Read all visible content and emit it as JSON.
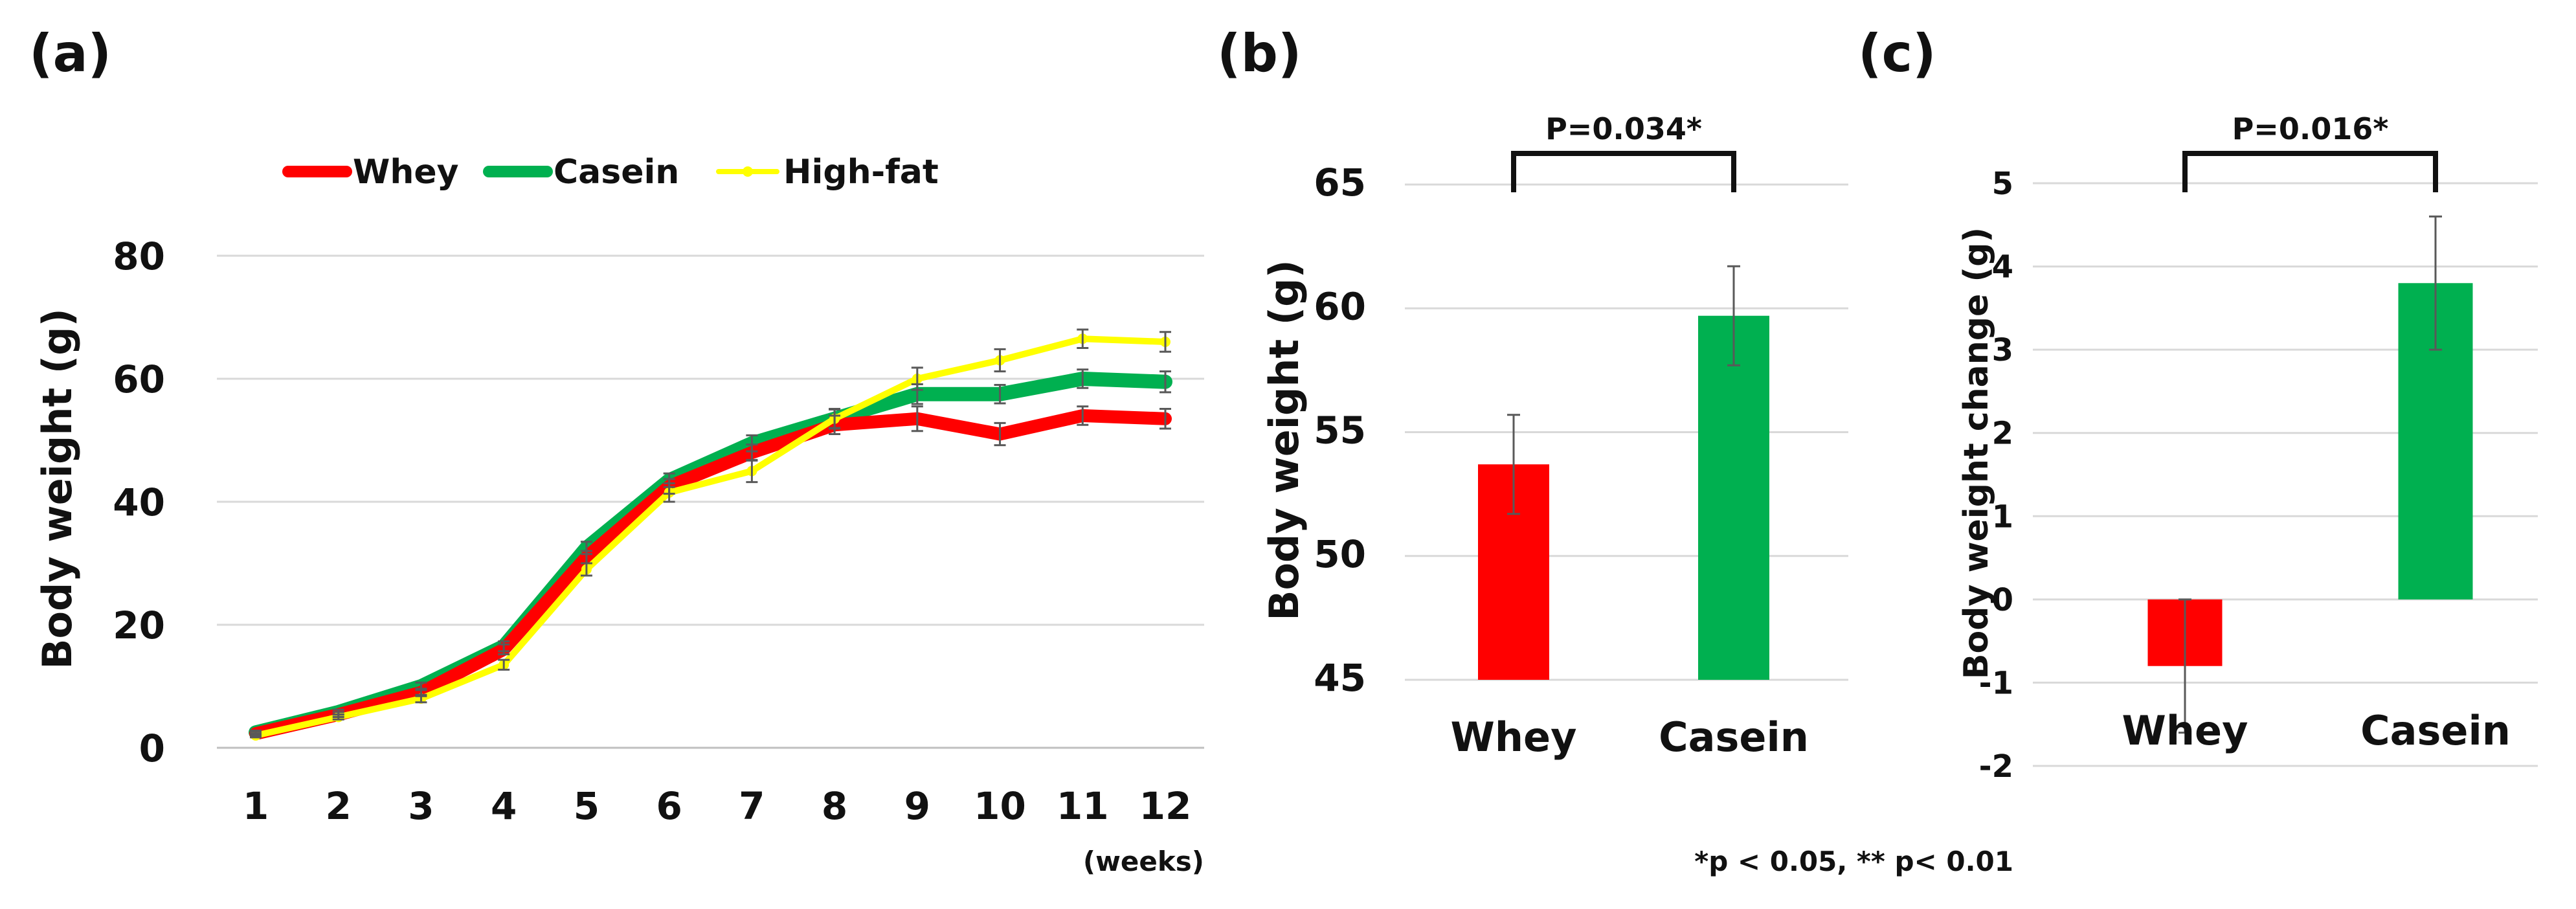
{
  "chart_data": [
    {
      "type": "line",
      "panel_label": "(a)",
      "ylabel": "Body weight (g)",
      "xlabel": "(weeks)",
      "x": [
        1,
        2,
        3,
        4,
        5,
        6,
        7,
        8,
        9,
        10,
        11,
        12
      ],
      "x_ticks": [
        "1",
        "2",
        "3",
        "4",
        "5",
        "6",
        "7",
        "8",
        "9",
        "10",
        "11",
        "12"
      ],
      "ylim": [
        0,
        80
      ],
      "y_ticks": [
        "0",
        "20",
        "40",
        "60",
        "80"
      ],
      "y_tick_values": [
        0,
        20,
        40,
        60,
        80
      ],
      "series": [
        {
          "name": "Whey",
          "color": "#ff0000",
          "values": [
            2.3,
            5.4,
            9.0,
            16.0,
            31.0,
            42.5,
            48.0,
            52.5,
            53.5,
            51.0,
            54.0,
            53.5
          ],
          "errors": [
            0.3,
            0.4,
            0.6,
            0.8,
            1.0,
            1.2,
            1.3,
            1.5,
            2.0,
            1.8,
            1.5,
            1.6
          ]
        },
        {
          "name": "Casein",
          "color": "#00b050",
          "values": [
            2.5,
            5.8,
            10.0,
            16.5,
            32.5,
            43.5,
            49.5,
            53.5,
            57.5,
            57.5,
            60.0,
            59.5
          ],
          "errors": [
            0.3,
            0.4,
            0.6,
            0.8,
            1.0,
            1.1,
            1.3,
            1.5,
            1.6,
            1.5,
            1.5,
            1.7
          ]
        },
        {
          "name": "High-fat",
          "color": "#ffff00",
          "values": [
            2.0,
            5.0,
            8.0,
            13.5,
            29.0,
            41.5,
            45.0,
            53.5,
            60.0,
            63.0,
            66.5,
            66.0
          ],
          "errors": [
            0.3,
            0.4,
            0.6,
            0.8,
            1.0,
            1.5,
            1.8,
            1.6,
            1.8,
            1.8,
            1.5,
            1.6
          ]
        }
      ]
    },
    {
      "type": "bar",
      "panel_label": "(b)",
      "ylabel": "Body weight (g)",
      "categories": [
        "Whey",
        "Casein"
      ],
      "values": [
        53.7,
        59.7
      ],
      "errors": [
        2.0,
        2.0
      ],
      "colors": [
        "#ff0000",
        "#00b050"
      ],
      "ylim": [
        45,
        65
      ],
      "y_ticks": [
        "45",
        "50",
        "55",
        "60",
        "65"
      ],
      "y_tick_values": [
        45,
        50,
        55,
        60,
        65
      ],
      "significance": "P=0.034*"
    },
    {
      "type": "bar",
      "panel_label": "(c)",
      "ylabel": "Body weight change (g)",
      "categories": [
        "Whey",
        "Casein"
      ],
      "values": [
        -0.8,
        3.8
      ],
      "errors": [
        0.8,
        0.8
      ],
      "colors": [
        "#ff0000",
        "#00b050"
      ],
      "ylim": [
        -2,
        5
      ],
      "y_ticks": [
        "-2",
        "-1",
        "0",
        "1",
        "2",
        "3",
        "4",
        "5"
      ],
      "y_tick_values": [
        -2,
        -1,
        0,
        1,
        2,
        3,
        4,
        5
      ],
      "significance": "P=0.016*"
    }
  ],
  "footnote": "*p < 0.05, ** p< 0.01"
}
